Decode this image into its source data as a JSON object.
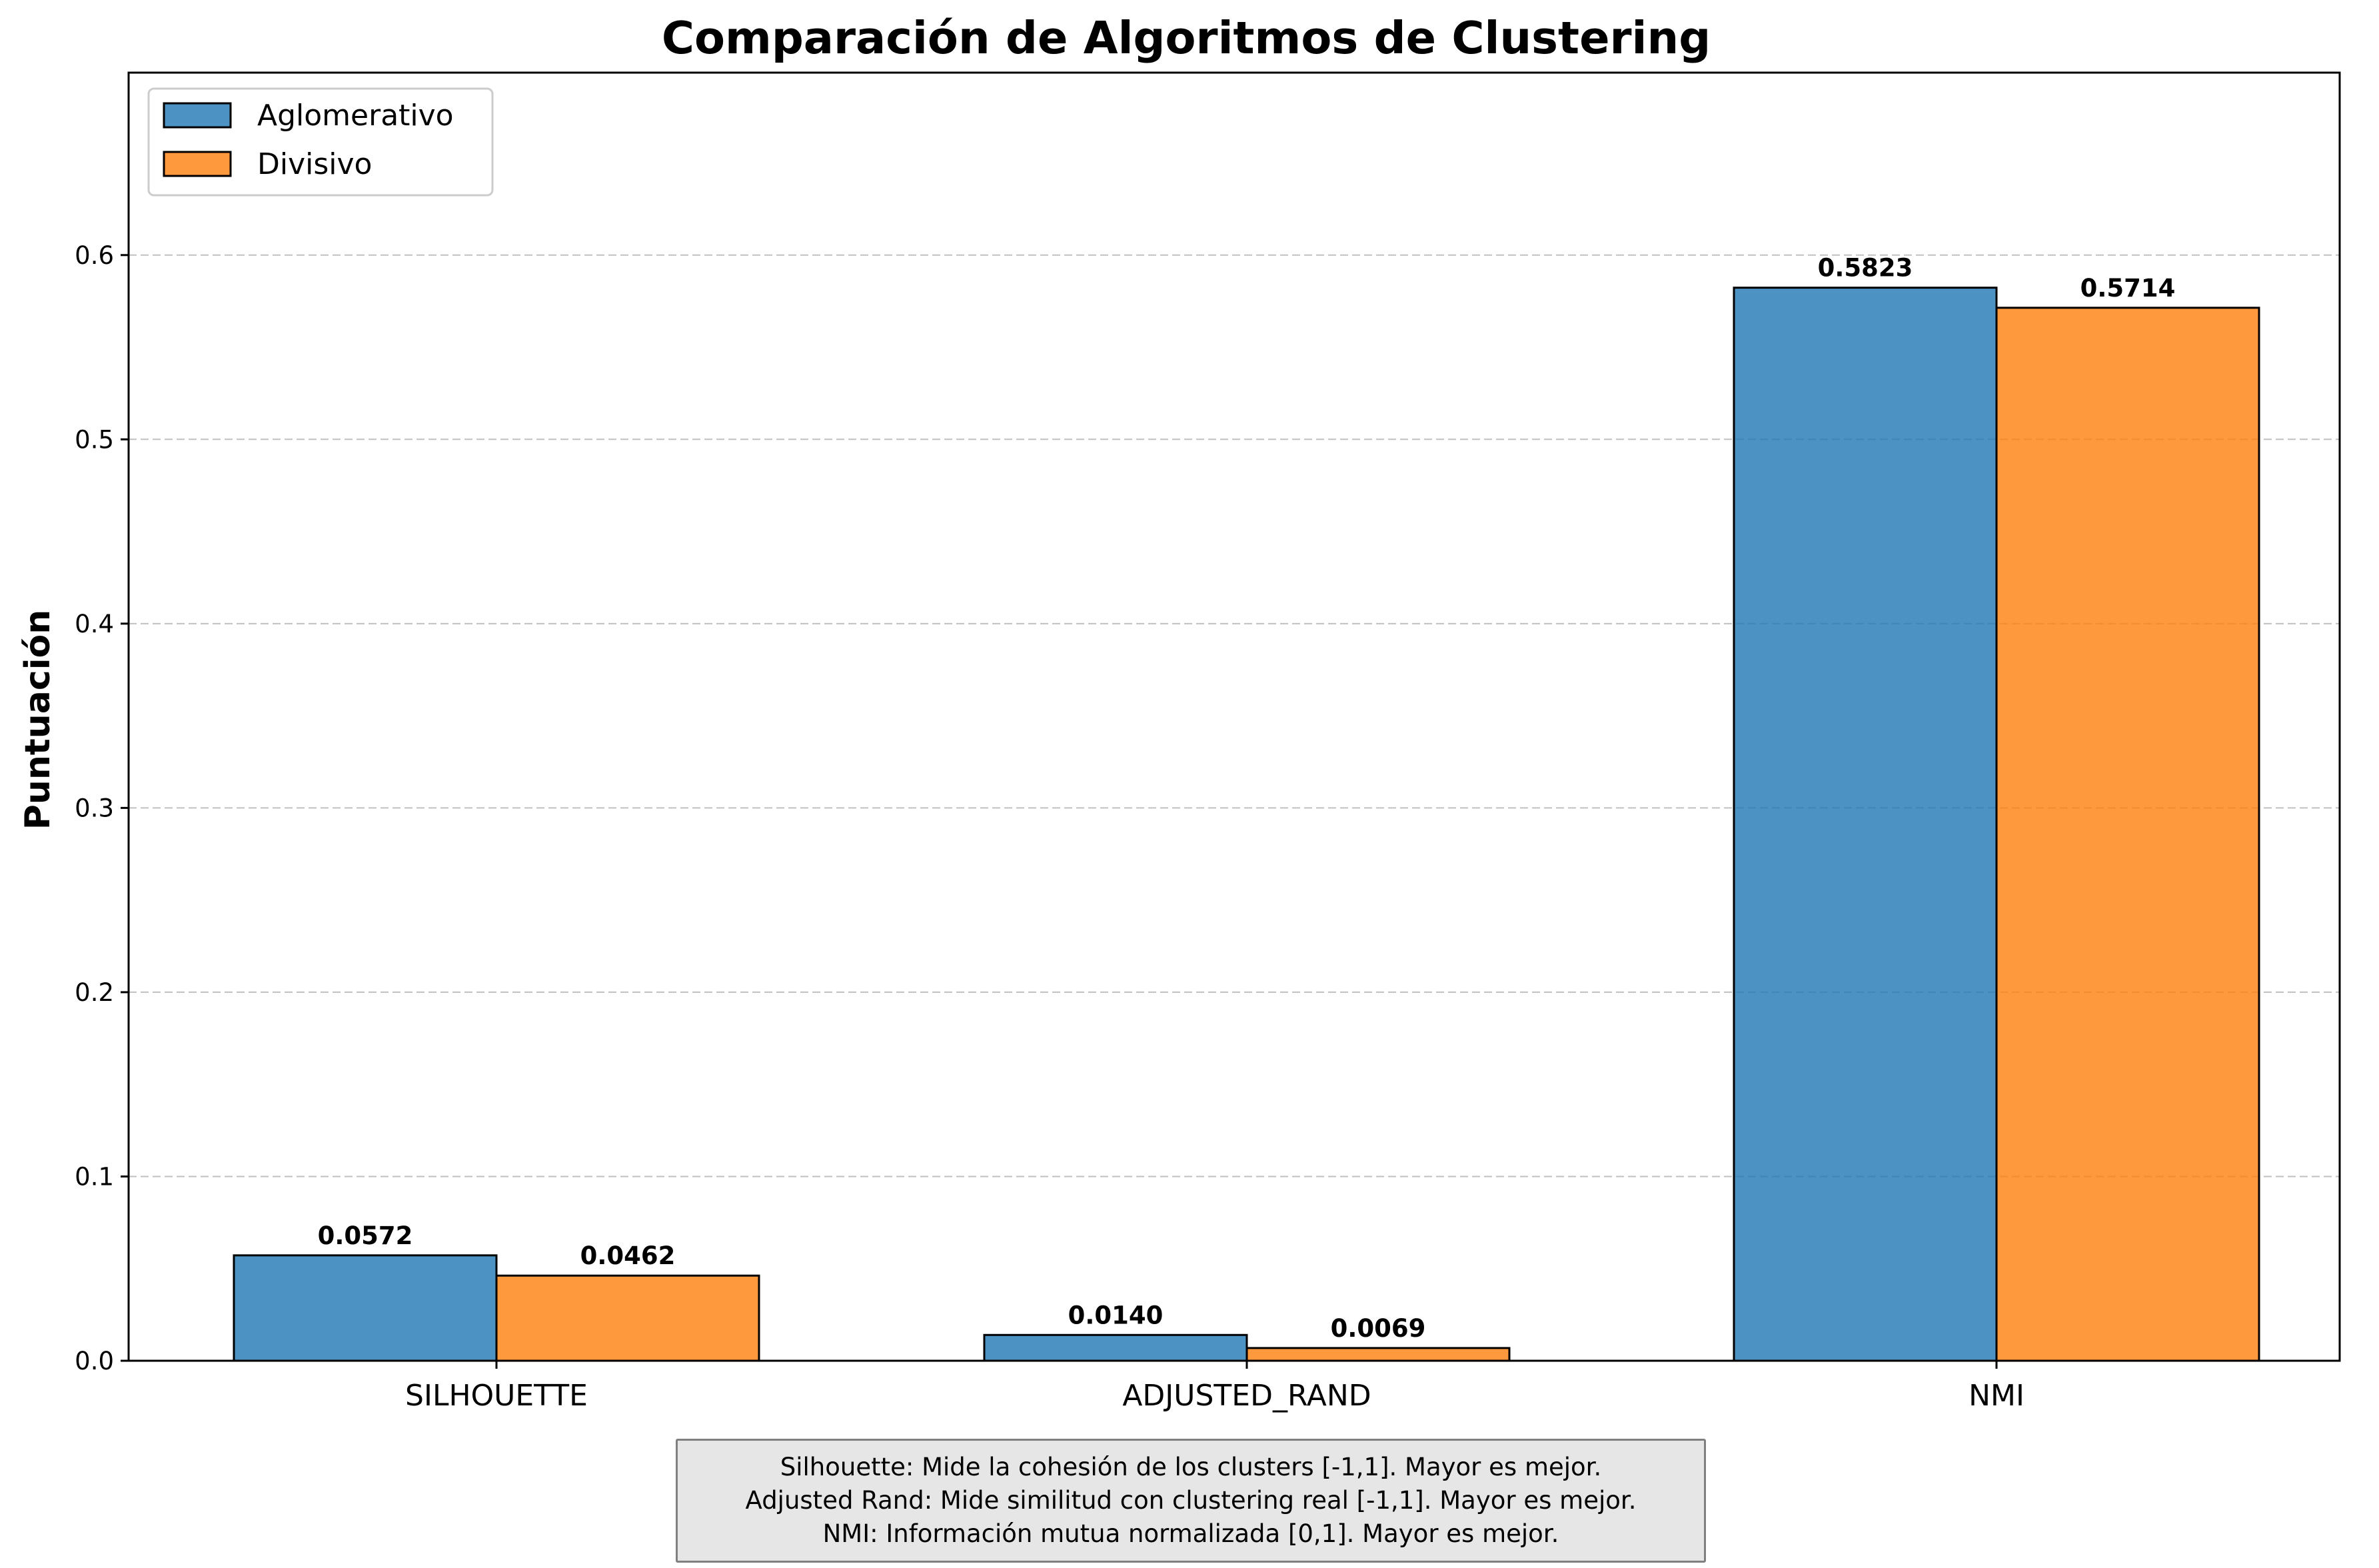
{
  "chart_data": {
    "type": "bar",
    "title": "Comparación de Algoritmos de Clustering",
    "xlabel": "",
    "ylabel": "Puntuación",
    "categories": [
      "SILHOUETTE",
      "ADJUSTED_RAND",
      "NMI"
    ],
    "series": [
      {
        "name": "Aglomerativo",
        "values": [
          0.0572,
          0.014,
          0.5823
        ],
        "labels": [
          "0.0572",
          "0.0140",
          "0.5823"
        ],
        "color": "#1f77b4"
      },
      {
        "name": "Divisivo",
        "values": [
          0.0462,
          0.0069,
          0.5714
        ],
        "labels": [
          "0.0462",
          "0.0069",
          "0.5714"
        ],
        "color": "#ff7f0e"
      }
    ],
    "ylim": [
      0,
      0.699
    ],
    "yticks": [
      "0.0",
      "0.1",
      "0.2",
      "0.3",
      "0.4",
      "0.5",
      "0.6"
    ],
    "grid": "y-dashed",
    "legend_position": "top-left"
  },
  "notes": [
    "Silhouette: Mide la cohesión de los clusters [-1,1]. Mayor es mejor.",
    "Adjusted Rand: Mide similitud con clustering real [-1,1]. Mayor es mejor.",
    "NMI: Información mutua normalizada [0,1]. Mayor es mejor."
  ]
}
